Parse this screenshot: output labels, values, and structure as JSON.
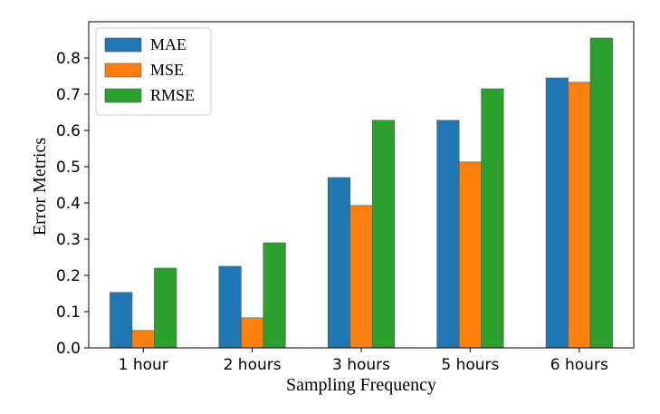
{
  "chart_data": {
    "type": "bar",
    "title": "",
    "xlabel": "Sampling Frequency",
    "ylabel": "Error Metrics",
    "categories": [
      "1 hour",
      "2 hours",
      "3 hours",
      "5 hours",
      "6 hours"
    ],
    "series": [
      {
        "name": "MAE",
        "color": "#1f77b4",
        "values": [
          0.153,
          0.225,
          0.47,
          0.628,
          0.745
        ]
      },
      {
        "name": "MSE",
        "color": "#ff7f0e",
        "values": [
          0.048,
          0.083,
          0.393,
          0.513,
          0.733
        ]
      },
      {
        "name": "RMSE",
        "color": "#2ca02c",
        "values": [
          0.22,
          0.29,
          0.628,
          0.715,
          0.855
        ]
      }
    ],
    "ylim": [
      0,
      0.9
    ],
    "yticks": [
      "0.0",
      "0.1",
      "0.2",
      "0.3",
      "0.4",
      "0.5",
      "0.6",
      "0.7",
      "0.8"
    ],
    "grid": false,
    "legend_position": "top-left"
  }
}
